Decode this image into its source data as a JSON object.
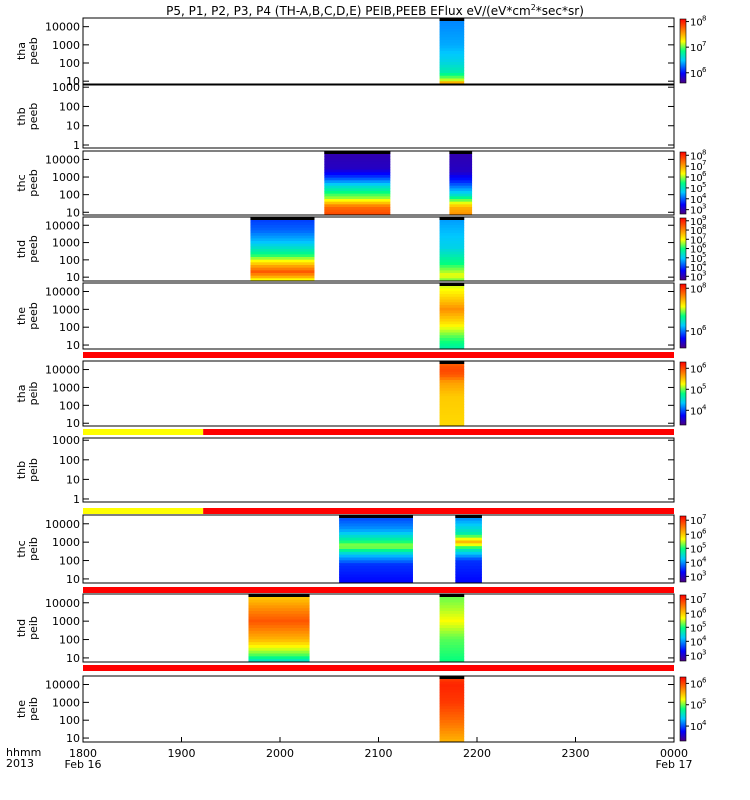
{
  "title": {
    "prefix": "P5, P1, P2, P3, P4 (TH-A,B,C,D,E) PEIB,PEEB EFlux eV/(eV*cm",
    "exp": "2",
    "suffix": "*sec*sr)"
  },
  "colors": {
    "mode_red": "#ff0000",
    "mode_yellow": "#ffff00",
    "fill_black": "#000000"
  },
  "time_axis": {
    "label_line1": "hhmm",
    "label_line2": "2013",
    "ticks": [
      "1800",
      "1900",
      "2000",
      "2100",
      "2200",
      "2300",
      "0000"
    ],
    "dates": [
      {
        "at": "1800",
        "text": "Feb 16"
      },
      {
        "at": "0000",
        "text": "Feb 17"
      }
    ],
    "range_hours": [
      18,
      24
    ]
  },
  "chart_data": {
    "type": "heatmap",
    "colormap": "rainbow",
    "panels": [
      {
        "probe": "tha",
        "product": "peeb",
        "ylog": true,
        "ylim": [
          7,
          30000
        ],
        "yticks": [
          "10000",
          "1000",
          "100",
          "10"
        ],
        "cbar_ticks": [
          {
            "v": 6,
            "label": "10",
            "exp": "6"
          },
          {
            "v": 7,
            "label": "10",
            "exp": "7"
          },
          {
            "v": 8,
            "label": "10",
            "exp": "8"
          }
        ],
        "cbar_range": [
          5.6,
          8.1
        ],
        "blocks": [
          {
            "t": [
              21.62,
              21.87
            ],
            "profile": [
              [
                7,
                0.65
              ],
              [
                9,
                0.8
              ],
              [
                12,
                0.6
              ],
              [
                30,
                0.45
              ],
              [
                120,
                0.38
              ],
              [
                1000,
                0.32
              ],
              [
                30000,
                0.28
              ]
            ]
          }
        ]
      },
      {
        "probe": "thb",
        "product": "peeb",
        "ylog": true,
        "ylim": [
          0.7,
          1300
        ],
        "yticks": [
          "1000",
          "100",
          "10",
          "1"
        ],
        "cbar_ticks": [],
        "blocks": []
      },
      {
        "probe": "thc",
        "product": "peeb",
        "ylog": true,
        "ylim": [
          7,
          30000
        ],
        "yticks": [
          "10000",
          "1000",
          "100",
          "10"
        ],
        "cbar_ticks": [
          {
            "v": 3,
            "label": "10",
            "exp": "3"
          },
          {
            "v": 4,
            "label": "10",
            "exp": "4"
          },
          {
            "v": 5,
            "label": "10",
            "exp": "5"
          },
          {
            "v": 6,
            "label": "10",
            "exp": "6"
          },
          {
            "v": 7,
            "label": "10",
            "exp": "7"
          },
          {
            "v": 8,
            "label": "10",
            "exp": "8"
          }
        ],
        "cbar_range": [
          2.6,
          8.3
        ],
        "blocks": [
          {
            "t": [
              20.45,
              21.12
            ],
            "profile": [
              [
                7,
                0.9
              ],
              [
                20,
                0.85
              ],
              [
                60,
                0.6
              ],
              [
                300,
                0.4
              ],
              [
                1000,
                0.2
              ],
              [
                3000,
                0.08
              ],
              [
                30000,
                0.05
              ]
            ]
          },
          {
            "t": [
              21.72,
              21.95
            ],
            "profile": [
              [
                7,
                0.8
              ],
              [
                20,
                0.75
              ],
              [
                100,
                0.4
              ],
              [
                500,
                0.2
              ],
              [
                2000,
                0.08
              ],
              [
                30000,
                0.05
              ]
            ]
          }
        ]
      },
      {
        "probe": "thd",
        "product": "peeb",
        "ylog": true,
        "ylim": [
          6,
          30000
        ],
        "yticks": [
          "10000",
          "1000",
          "100",
          "10"
        ],
        "cbar_ticks": [
          {
            "v": 3,
            "label": "10",
            "exp": "3"
          },
          {
            "v": 4,
            "label": "10",
            "exp": "4"
          },
          {
            "v": 5,
            "label": "10",
            "exp": "5"
          },
          {
            "v": 6,
            "label": "10",
            "exp": "6"
          },
          {
            "v": 7,
            "label": "10",
            "exp": "7"
          },
          {
            "v": 8,
            "label": "10",
            "exp": "8"
          },
          {
            "v": 9,
            "label": "10",
            "exp": "9"
          }
        ],
        "cbar_range": [
          2.6,
          9.3
        ],
        "blocks": [
          {
            "t": [
              19.7,
              20.35
            ],
            "profile": [
              [
                6,
                0.6
              ],
              [
                10,
                0.75
              ],
              [
                20,
                0.88
              ],
              [
                50,
                0.75
              ],
              [
                200,
                0.5
              ],
              [
                1000,
                0.35
              ],
              [
                5000,
                0.25
              ],
              [
                30000,
                0.2
              ]
            ]
          },
          {
            "t": [
              21.62,
              21.87
            ],
            "profile": [
              [
                6,
                0.55
              ],
              [
                12,
                0.65
              ],
              [
                60,
                0.5
              ],
              [
                500,
                0.38
              ],
              [
                30000,
                0.3
              ]
            ]
          }
        ]
      },
      {
        "probe": "the",
        "product": "peeb",
        "ylog": true,
        "ylim": [
          6,
          30000
        ],
        "yticks": [
          "10000",
          "1000",
          "100",
          "10"
        ],
        "cbar_ticks": [
          {
            "v": 6,
            "label": "10",
            "exp": "6"
          },
          {
            "v": 8,
            "label": "10",
            "exp": "8"
          }
        ],
        "cbar_range": [
          5.2,
          8.2
        ],
        "blocks": [
          {
            "t": [
              21.62,
              21.87
            ],
            "profile": [
              [
                6,
                0.45
              ],
              [
                30,
                0.55
              ],
              [
                200,
                0.7
              ],
              [
                1000,
                0.8
              ],
              [
                5000,
                0.7
              ],
              [
                30000,
                0.6
              ]
            ]
          }
        ]
      },
      {
        "probe": "tha",
        "product": "peib",
        "ylog": true,
        "ylim": [
          7,
          30000
        ],
        "yticks": [
          "10000",
          "1000",
          "100",
          "10"
        ],
        "cbar_ticks": [
          {
            "v": 4,
            "label": "10",
            "exp": "4"
          },
          {
            "v": 5,
            "label": "10",
            "exp": "5"
          },
          {
            "v": 6,
            "label": "10",
            "exp": "6"
          }
        ],
        "cbar_range": [
          3.3,
          6.3
        ],
        "mode": [
          {
            "t": [
              18,
              24
            ],
            "c": "red"
          }
        ],
        "blocks": [
          {
            "t": [
              21.62,
              21.87
            ],
            "profile": [
              [
                7,
                0.7
              ],
              [
                300,
                0.72
              ],
              [
                2000,
                0.78
              ],
              [
                5000,
                0.88
              ],
              [
                10000,
                0.9
              ],
              [
                30000,
                0.85
              ]
            ]
          }
        ]
      },
      {
        "probe": "thb",
        "product": "peib",
        "ylog": true,
        "ylim": [
          0.7,
          1300
        ],
        "yticks": [
          "1000",
          "100",
          "10",
          "1"
        ],
        "cbar_ticks": [],
        "mode": [
          {
            "t": [
              18,
              19.22
            ],
            "c": "yellow"
          },
          {
            "t": [
              19.22,
              24
            ],
            "c": "red"
          }
        ],
        "blocks": []
      },
      {
        "probe": "thc",
        "product": "peib",
        "ylog": true,
        "ylim": [
          6,
          30000
        ],
        "yticks": [
          "10000",
          "1000",
          "100",
          "10"
        ],
        "cbar_ticks": [
          {
            "v": 3,
            "label": "10",
            "exp": "3"
          },
          {
            "v": 4,
            "label": "10",
            "exp": "4"
          },
          {
            "v": 5,
            "label": "10",
            "exp": "5"
          },
          {
            "v": 6,
            "label": "10",
            "exp": "6"
          },
          {
            "v": 7,
            "label": "10",
            "exp": "7"
          }
        ],
        "cbar_range": [
          2.6,
          7.3
        ],
        "mode": [
          {
            "t": [
              18,
              19.22
            ],
            "c": "yellow"
          },
          {
            "t": [
              19.22,
              24
            ],
            "c": "red"
          }
        ],
        "blocks": [
          {
            "t": [
              20.6,
              21.35
            ],
            "profile": [
              [
                6,
                0.15
              ],
              [
                60,
                0.2
              ],
              [
                200,
                0.35
              ],
              [
                600,
                0.6
              ],
              [
                1500,
                0.45
              ],
              [
                5000,
                0.3
              ],
              [
                30000,
                0.2
              ]
            ]
          },
          {
            "t": [
              21.78,
              22.05
            ],
            "profile": [
              [
                6,
                0.15
              ],
              [
                100,
                0.2
              ],
              [
                400,
                0.45
              ],
              [
                1000,
                0.75
              ],
              [
                3000,
                0.45
              ],
              [
                30000,
                0.25
              ]
            ]
          }
        ]
      },
      {
        "probe": "thd",
        "product": "peib",
        "ylog": true,
        "ylim": [
          6,
          30000
        ],
        "yticks": [
          "10000",
          "1000",
          "100",
          "10"
        ],
        "cbar_ticks": [
          {
            "v": 3,
            "label": "10",
            "exp": "3"
          },
          {
            "v": 4,
            "label": "10",
            "exp": "4"
          },
          {
            "v": 5,
            "label": "10",
            "exp": "5"
          },
          {
            "v": 6,
            "label": "10",
            "exp": "6"
          },
          {
            "v": 7,
            "label": "10",
            "exp": "7"
          }
        ],
        "cbar_range": [
          2.6,
          7.3
        ],
        "mode": [
          {
            "t": [
              18,
              24
            ],
            "c": "red"
          }
        ],
        "blocks": [
          {
            "t": [
              19.68,
              20.3
            ],
            "profile": [
              [
                6,
                0.4
              ],
              [
                15,
                0.55
              ],
              [
                100,
                0.75
              ],
              [
                1000,
                0.88
              ],
              [
                5000,
                0.8
              ],
              [
                30000,
                0.7
              ]
            ]
          },
          {
            "t": [
              21.62,
              21.87
            ],
            "profile": [
              [
                6,
                0.5
              ],
              [
                100,
                0.55
              ],
              [
                1000,
                0.65
              ],
              [
                5000,
                0.6
              ],
              [
                30000,
                0.55
              ]
            ]
          }
        ]
      },
      {
        "probe": "the",
        "product": "peib",
        "ylog": true,
        "ylim": [
          6,
          30000
        ],
        "yticks": [
          "10000",
          "1000",
          "100",
          "10"
        ],
        "cbar_ticks": [
          {
            "v": 4,
            "label": "10",
            "exp": "4"
          },
          {
            "v": 5,
            "label": "10",
            "exp": "5"
          },
          {
            "v": 6,
            "label": "10",
            "exp": "6"
          }
        ],
        "cbar_range": [
          3.3,
          6.3
        ],
        "mode": [
          {
            "t": [
              18,
              24
            ],
            "c": "red"
          }
        ],
        "blocks": [
          {
            "t": [
              21.62,
              21.87
            ],
            "profile": [
              [
                6,
                0.75
              ],
              [
                100,
                0.85
              ],
              [
                1000,
                0.92
              ],
              [
                10000,
                0.95
              ],
              [
                30000,
                0.9
              ]
            ]
          }
        ]
      }
    ]
  }
}
